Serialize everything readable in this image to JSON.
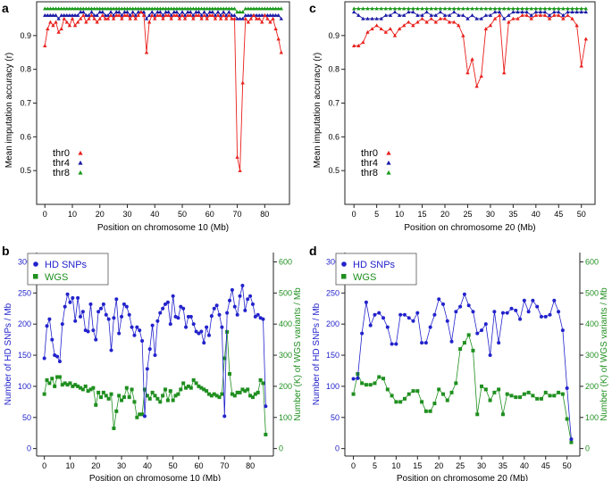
{
  "figure": {
    "panels": {
      "a": "a",
      "b": "b",
      "c": "c",
      "d": "d"
    }
  },
  "colors": {
    "thr0": "#e8201c",
    "thr4": "#1a1aa6",
    "thr8": "#1a9a1a",
    "hd": "#2222cc",
    "wgs": "#1f8f1f",
    "axis_hd": "#2222cc",
    "axis_wgs": "#1f8f1f"
  },
  "chart_data": [
    {
      "panel": "a",
      "type": "line",
      "xlabel": "Position on chromosome 10 (Mb)",
      "ylabel": "Mean imputation accuracy (r)",
      "xlim": [
        -3,
        89
      ],
      "ylim": [
        0.4,
        1.0
      ],
      "x_ticks": [
        0,
        10,
        20,
        30,
        40,
        50,
        60,
        70,
        80
      ],
      "y_ticks": [
        0.5,
        0.6,
        0.7,
        0.8,
        0.9
      ],
      "y_tick_labels": [
        "0.5",
        "0.6",
        "0.7",
        "0.8",
        "0.9"
      ],
      "legend": [
        "thr0",
        "thr4",
        "thr8"
      ],
      "x": [
        0,
        1,
        2,
        3,
        4,
        5,
        6,
        7,
        8,
        9,
        10,
        11,
        12,
        13,
        14,
        15,
        16,
        17,
        18,
        19,
        20,
        21,
        22,
        23,
        24,
        25,
        26,
        27,
        28,
        29,
        30,
        31,
        32,
        33,
        34,
        35,
        36,
        37,
        38,
        39,
        40,
        41,
        42,
        43,
        44,
        45,
        46,
        47,
        48,
        49,
        50,
        51,
        52,
        53,
        54,
        55,
        56,
        57,
        58,
        59,
        60,
        61,
        62,
        63,
        64,
        65,
        66,
        67,
        68,
        69,
        70,
        71,
        72,
        73,
        74,
        75,
        76,
        77,
        78,
        79,
        80,
        81,
        82,
        83,
        84,
        85,
        86
      ],
      "series": [
        {
          "name": "thr0",
          "values": [
            0.87,
            0.92,
            0.94,
            0.93,
            0.94,
            0.91,
            0.92,
            0.95,
            0.94,
            0.93,
            0.95,
            0.93,
            0.94,
            0.95,
            0.96,
            0.94,
            0.95,
            0.96,
            0.95,
            0.94,
            0.95,
            0.96,
            0.95,
            0.95,
            0.96,
            0.95,
            0.96,
            0.96,
            0.95,
            0.96,
            0.96,
            0.95,
            0.96,
            0.95,
            0.96,
            0.97,
            0.96,
            0.85,
            0.94,
            0.96,
            0.95,
            0.96,
            0.96,
            0.95,
            0.96,
            0.96,
            0.95,
            0.96,
            0.96,
            0.95,
            0.96,
            0.95,
            0.96,
            0.96,
            0.95,
            0.96,
            0.96,
            0.95,
            0.96,
            0.95,
            0.96,
            0.96,
            0.95,
            0.96,
            0.95,
            0.96,
            0.95,
            0.96,
            0.95,
            0.95,
            0.54,
            0.5,
            0.76,
            0.95,
            0.94,
            0.95,
            0.96,
            0.95,
            0.95,
            0.94,
            0.96,
            0.95,
            0.94,
            0.95,
            0.92,
            0.89,
            0.85
          ]
        },
        {
          "name": "thr4",
          "values": [
            0.96,
            0.96,
            0.96,
            0.96,
            0.96,
            0.95,
            0.96,
            0.96,
            0.96,
            0.96,
            0.96,
            0.96,
            0.96,
            0.97,
            0.97,
            0.96,
            0.96,
            0.97,
            0.96,
            0.96,
            0.97,
            0.97,
            0.96,
            0.96,
            0.97,
            0.96,
            0.97,
            0.97,
            0.96,
            0.97,
            0.97,
            0.96,
            0.97,
            0.96,
            0.97,
            0.97,
            0.97,
            0.95,
            0.96,
            0.97,
            0.96,
            0.97,
            0.97,
            0.96,
            0.97,
            0.97,
            0.96,
            0.97,
            0.97,
            0.96,
            0.97,
            0.96,
            0.97,
            0.97,
            0.96,
            0.97,
            0.97,
            0.96,
            0.97,
            0.96,
            0.97,
            0.97,
            0.96,
            0.97,
            0.96,
            0.97,
            0.96,
            0.97,
            0.96,
            0.96,
            0.95,
            0.95,
            0.95,
            0.96,
            0.96,
            0.96,
            0.96,
            0.96,
            0.96,
            0.96,
            0.96,
            0.96,
            0.96,
            0.96,
            0.96,
            0.96,
            0.95
          ]
        },
        {
          "name": "thr8",
          "values": [
            0.98,
            0.98,
            0.98,
            0.98,
            0.98,
            0.98,
            0.98,
            0.98,
            0.98,
            0.98,
            0.98,
            0.98,
            0.98,
            0.98,
            0.98,
            0.98,
            0.98,
            0.98,
            0.98,
            0.98,
            0.98,
            0.98,
            0.98,
            0.98,
            0.98,
            0.98,
            0.98,
            0.98,
            0.98,
            0.98,
            0.98,
            0.98,
            0.98,
            0.98,
            0.98,
            0.98,
            0.98,
            0.98,
            0.98,
            0.98,
            0.98,
            0.98,
            0.98,
            0.98,
            0.98,
            0.98,
            0.98,
            0.98,
            0.98,
            0.98,
            0.98,
            0.98,
            0.98,
            0.98,
            0.98,
            0.98,
            0.98,
            0.98,
            0.98,
            0.98,
            0.98,
            0.98,
            0.98,
            0.98,
            0.98,
            0.98,
            0.98,
            0.98,
            0.98,
            0.98,
            0.97,
            0.97,
            0.97,
            0.98,
            0.98,
            0.98,
            0.98,
            0.98,
            0.98,
            0.98,
            0.98,
            0.98,
            0.98,
            0.98,
            0.98,
            0.98,
            0.98
          ]
        }
      ]
    },
    {
      "panel": "c",
      "type": "line",
      "xlabel": "Position on chromosome 20 (Mb)",
      "ylabel": "Mean imputation accuracy (r)",
      "xlim": [
        -2,
        53
      ],
      "ylim": [
        0.4,
        1.0
      ],
      "x_ticks": [
        0,
        5,
        10,
        15,
        20,
        25,
        30,
        35,
        40,
        45,
        50
      ],
      "y_ticks": [
        0.5,
        0.6,
        0.7,
        0.8,
        0.9
      ],
      "y_tick_labels": [
        "0.5",
        "0.6",
        "0.7",
        "0.8",
        "0.9"
      ],
      "legend": [
        "thr0",
        "thr4",
        "thr8"
      ],
      "x": [
        0,
        1,
        2,
        3,
        4,
        5,
        6,
        7,
        8,
        9,
        10,
        11,
        12,
        13,
        14,
        15,
        16,
        17,
        18,
        19,
        20,
        21,
        22,
        23,
        24,
        25,
        26,
        27,
        28,
        29,
        30,
        31,
        32,
        33,
        34,
        35,
        36,
        37,
        38,
        39,
        40,
        41,
        42,
        43,
        44,
        45,
        46,
        47,
        48,
        49,
        50,
        51
      ],
      "series": [
        {
          "name": "thr0",
          "values": [
            0.87,
            0.87,
            0.88,
            0.91,
            0.92,
            0.93,
            0.92,
            0.91,
            0.92,
            0.9,
            0.92,
            0.93,
            0.94,
            0.93,
            0.94,
            0.95,
            0.94,
            0.95,
            0.94,
            0.95,
            0.95,
            0.94,
            0.94,
            0.93,
            0.9,
            0.79,
            0.83,
            0.75,
            0.78,
            0.92,
            0.93,
            0.95,
            0.96,
            0.79,
            0.94,
            0.95,
            0.95,
            0.96,
            0.96,
            0.95,
            0.96,
            0.96,
            0.96,
            0.95,
            0.96,
            0.96,
            0.95,
            0.96,
            0.95,
            0.93,
            0.81,
            0.89
          ]
        },
        {
          "name": "thr4",
          "values": [
            0.97,
            0.96,
            0.95,
            0.95,
            0.95,
            0.95,
            0.95,
            0.96,
            0.96,
            0.97,
            0.96,
            0.96,
            0.97,
            0.97,
            0.96,
            0.96,
            0.97,
            0.96,
            0.96,
            0.97,
            0.96,
            0.96,
            0.97,
            0.96,
            0.96,
            0.95,
            0.96,
            0.95,
            0.95,
            0.96,
            0.96,
            0.97,
            0.97,
            0.95,
            0.96,
            0.97,
            0.97,
            0.97,
            0.97,
            0.96,
            0.97,
            0.97,
            0.97,
            0.96,
            0.97,
            0.97,
            0.96,
            0.97,
            0.97,
            0.97,
            0.97,
            0.97
          ]
        },
        {
          "name": "thr8",
          "values": [
            0.98,
            0.98,
            0.98,
            0.98,
            0.98,
            0.98,
            0.98,
            0.98,
            0.98,
            0.98,
            0.98,
            0.98,
            0.98,
            0.98,
            0.98,
            0.98,
            0.98,
            0.98,
            0.98,
            0.98,
            0.98,
            0.98,
            0.98,
            0.98,
            0.98,
            0.98,
            0.98,
            0.98,
            0.98,
            0.98,
            0.98,
            0.98,
            0.98,
            0.98,
            0.98,
            0.98,
            0.98,
            0.98,
            0.98,
            0.98,
            0.98,
            0.98,
            0.98,
            0.98,
            0.98,
            0.98,
            0.98,
            0.98,
            0.98,
            0.98,
            0.98,
            0.98
          ]
        }
      ]
    },
    {
      "panel": "b",
      "type": "line",
      "xlabel": "Position on chromosome 10 (Mb)",
      "ylabel_left": "Number of HD SNPs / Mb",
      "ylabel_right": "Number (K) of WGS variants / Mb",
      "xlim": [
        -3,
        89
      ],
      "ylim_left": [
        -12,
        315
      ],
      "ylim_right": [
        -24,
        630
      ],
      "x_ticks": [
        0,
        10,
        20,
        30,
        40,
        50,
        60,
        70,
        80
      ],
      "y_ticks_left": [
        0,
        50,
        100,
        150,
        200,
        250,
        300
      ],
      "y_ticks_right": [
        0,
        100,
        200,
        300,
        400,
        500,
        600
      ],
      "legend": [
        "HD SNPs",
        "WGS"
      ],
      "x": [
        0,
        1,
        2,
        3,
        4,
        5,
        6,
        7,
        8,
        9,
        10,
        11,
        12,
        13,
        14,
        15,
        16,
        17,
        18,
        19,
        20,
        21,
        22,
        23,
        24,
        25,
        26,
        27,
        28,
        29,
        30,
        31,
        32,
        33,
        34,
        35,
        36,
        37,
        38,
        39,
        40,
        41,
        42,
        43,
        44,
        45,
        46,
        47,
        48,
        49,
        50,
        51,
        52,
        53,
        54,
        55,
        56,
        57,
        58,
        59,
        60,
        61,
        62,
        63,
        64,
        65,
        66,
        67,
        68,
        69,
        70,
        71,
        72,
        73,
        74,
        75,
        76,
        77,
        78,
        79,
        80,
        81,
        82,
        83,
        84,
        85,
        86
      ],
      "series": [
        {
          "name": "HD SNPs",
          "axis": "left",
          "values": [
            145,
            197,
            208,
            175,
            150,
            148,
            140,
            200,
            228,
            248,
            235,
            242,
            205,
            242,
            212,
            220,
            190,
            188,
            232,
            190,
            175,
            220,
            225,
            232,
            215,
            208,
            158,
            210,
            240,
            185,
            212,
            232,
            228,
            215,
            195,
            182,
            195,
            190,
            173,
            52,
            128,
            160,
            198,
            150,
            205,
            218,
            225,
            232,
            235,
            200,
            245,
            212,
            210,
            228,
            225,
            195,
            212,
            212,
            200,
            188,
            185,
            188,
            170,
            195,
            182,
            213,
            225,
            230,
            215,
            195,
            52,
            218,
            238,
            255,
            228,
            215,
            245,
            262,
            222,
            240,
            245,
            232,
            212,
            215,
            210,
            208,
            68
          ]
        },
        {
          "name": "WGS",
          "axis": "right",
          "values": [
            175,
            220,
            210,
            225,
            200,
            230,
            230,
            205,
            210,
            205,
            210,
            200,
            205,
            200,
            195,
            190,
            200,
            185,
            190,
            195,
            140,
            180,
            165,
            180,
            170,
            160,
            175,
            65,
            120,
            170,
            155,
            165,
            195,
            165,
            190,
            150,
            100,
            110,
            110,
            190,
            170,
            160,
            180,
            170,
            160,
            150,
            170,
            190,
            155,
            185,
            155,
            170,
            175,
            190,
            210,
            195,
            200,
            195,
            220,
            210,
            200,
            195,
            190,
            185,
            175,
            170,
            175,
            170,
            165,
            175,
            290,
            375,
            240,
            175,
            170,
            180,
            180,
            190,
            185,
            190,
            170,
            165,
            175,
            180,
            220,
            210,
            45
          ]
        }
      ]
    },
    {
      "panel": "d",
      "type": "line",
      "xlabel": "Position on chromosome 20 (Mb)",
      "ylabel_left": "Number of HD SNPs / Mb",
      "ylabel_right": "Number (K) of WGS variants / Mb",
      "xlim": [
        -2,
        53
      ],
      "ylim_left": [
        -12,
        315
      ],
      "ylim_right": [
        -24,
        630
      ],
      "x_ticks": [
        0,
        5,
        10,
        15,
        20,
        25,
        30,
        35,
        40,
        45,
        50
      ],
      "y_ticks_left": [
        0,
        50,
        100,
        150,
        200,
        250,
        300
      ],
      "y_ticks_right": [
        0,
        100,
        200,
        300,
        400,
        500,
        600
      ],
      "legend": [
        "HD SNPs",
        "WGS"
      ],
      "x": [
        0,
        1,
        2,
        3,
        4,
        5,
        6,
        7,
        8,
        9,
        10,
        11,
        12,
        13,
        14,
        15,
        16,
        17,
        18,
        19,
        20,
        21,
        22,
        23,
        24,
        25,
        26,
        27,
        28,
        29,
        30,
        31,
        32,
        33,
        34,
        35,
        36,
        37,
        38,
        39,
        40,
        41,
        42,
        43,
        44,
        45,
        46,
        47,
        48,
        49,
        50,
        51
      ],
      "series": [
        {
          "name": "HD SNPs",
          "axis": "left",
          "values": [
            112,
            113,
            185,
            235,
            198,
            215,
            218,
            210,
            195,
            168,
            168,
            215,
            215,
            210,
            205,
            218,
            170,
            170,
            195,
            215,
            240,
            232,
            205,
            172,
            220,
            228,
            248,
            230,
            220,
            185,
            190,
            200,
            150,
            220,
            170,
            218,
            218,
            225,
            222,
            208,
            238,
            220,
            238,
            228,
            212,
            212,
            215,
            238,
            220,
            190,
            97,
            15
          ]
        },
        {
          "name": "WGS",
          "axis": "right",
          "values": [
            175,
            240,
            210,
            205,
            205,
            210,
            230,
            225,
            190,
            170,
            150,
            150,
            160,
            175,
            185,
            185,
            150,
            120,
            120,
            145,
            190,
            175,
            155,
            180,
            210,
            320,
            340,
            365,
            315,
            110,
            200,
            190,
            155,
            180,
            190,
            110,
            175,
            170,
            165,
            165,
            175,
            180,
            170,
            160,
            160,
            180,
            170,
            170,
            180,
            175,
            95,
            20
          ]
        }
      ]
    }
  ]
}
